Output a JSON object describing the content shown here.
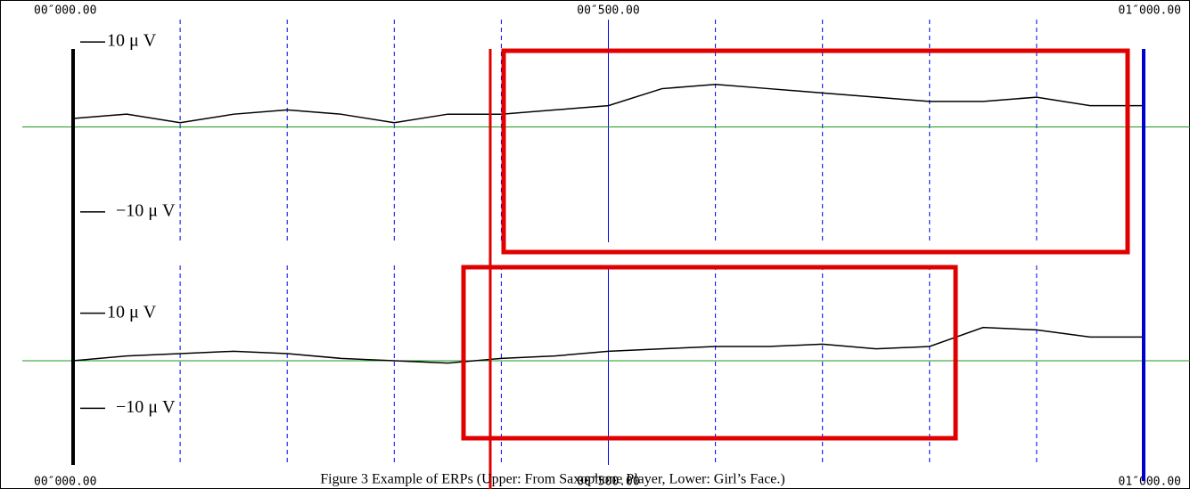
{
  "chart_data": [
    {
      "type": "line",
      "xlim": [
        0,
        1000
      ],
      "xticks": [
        {
          "value": 0,
          "label": "00″000.00"
        },
        {
          "value": 500,
          "label": "00″500.00"
        },
        {
          "value": 1000,
          "label": "01″000.00"
        }
      ],
      "xgrid": [
        100,
        200,
        300,
        400,
        500,
        600,
        700,
        800,
        900
      ],
      "ylim": [
        -12,
        12
      ],
      "yticks": [
        {
          "value": 10,
          "label": "10 μ V"
        },
        {
          "value": -10,
          "label": "−10 μ V"
        }
      ],
      "x": [
        0,
        50,
        100,
        150,
        200,
        250,
        300,
        350,
        400,
        450,
        500,
        550,
        600,
        650,
        700,
        750,
        800,
        850,
        900,
        950,
        1000
      ],
      "series": [
        {
          "color": "#000000",
          "values": [
            1,
            1.5,
            0.5,
            1.5,
            2,
            1.5,
            0.5,
            1.5,
            1.5,
            2,
            2.5,
            4.5,
            5,
            4.5,
            4,
            3.5,
            3,
            3,
            3.5,
            2.5,
            2.5
          ]
        }
      ]
    },
    {
      "type": "line",
      "xlim": [
        0,
        1000
      ],
      "xticks": [
        {
          "value": 0,
          "label": "00″000.00"
        },
        {
          "value": 500,
          "label": "00″500.00"
        },
        {
          "value": 1000,
          "label": "01″000.00"
        }
      ],
      "xgrid": [
        100,
        200,
        300,
        400,
        500,
        600,
        700,
        800,
        900
      ],
      "ylim": [
        -12,
        12
      ],
      "yticks": [
        {
          "value": 10,
          "label": "10 μ V"
        },
        {
          "value": -10,
          "label": "−10 μ V"
        }
      ],
      "x": [
        0,
        50,
        100,
        150,
        200,
        250,
        300,
        350,
        400,
        450,
        500,
        550,
        600,
        650,
        700,
        750,
        800,
        850,
        900,
        950,
        1000
      ],
      "series": [
        {
          "color": "#000000",
          "values": [
            0,
            1,
            1.5,
            2,
            1.5,
            0.5,
            0,
            -0.5,
            0.5,
            1,
            2,
            2.5,
            3,
            3,
            3.5,
            2.5,
            3,
            7,
            6.5,
            5,
            5
          ]
        }
      ]
    }
  ],
  "caption": "Figure 3 Example of ERPs (Upper: From Saxophone Player, Lower: Girl’s Face.)"
}
